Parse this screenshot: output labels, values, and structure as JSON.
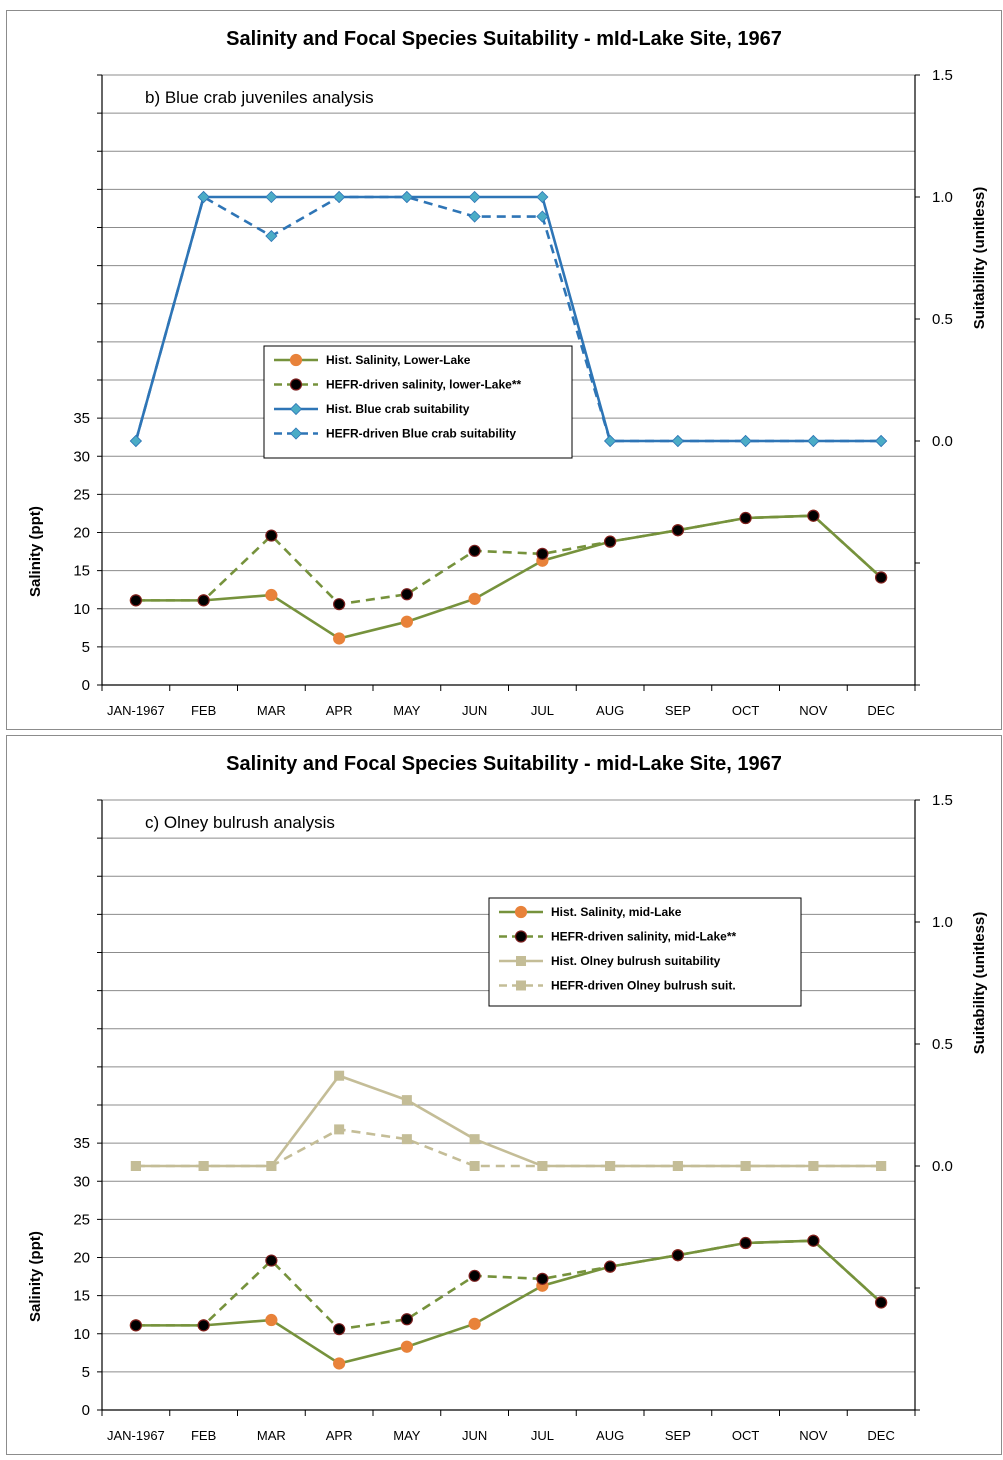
{
  "chart_data": [
    {
      "type": "line",
      "title": "Salinity and Focal Species Suitability - mId-Lake Site, 1967",
      "annotation": "b) Blue crab juveniles analysis",
      "ylabel": "Salinity (ppt)",
      "y2label": "Suitability (unitless)",
      "categories": [
        "JAN-1967",
        "FEB",
        "MAR",
        "APR",
        "MAY",
        "JUN",
        "JUL",
        "AUG",
        "SEP",
        "OCT",
        "NOV",
        "DEC"
      ],
      "ylim": [
        0,
        80
      ],
      "y_ticks": [
        "0",
        "5",
        "10",
        "15",
        "20",
        "25",
        "30",
        "35"
      ],
      "y2lim": [
        -1.0,
        1.5
      ],
      "y2_ticks": [
        "0.0",
        "0.5",
        "1.0",
        "1.5"
      ],
      "grid": true,
      "legend_position": "center",
      "series": [
        {
          "name": "Hist. Salinity, Lower-Lake",
          "axis": "left",
          "color": "#76923c",
          "marker": "circle",
          "marker_color": "#e8823a",
          "dashed": false,
          "values": [
            11.1,
            11.1,
            11.8,
            6.1,
            8.3,
            11.3,
            16.3,
            18.8,
            20.3,
            21.9,
            22.2,
            14.1
          ]
        },
        {
          "name": "HEFR-driven salinity, lower-Lake**",
          "axis": "left",
          "color": "#76923c",
          "marker": "circle",
          "marker_color": "#000000",
          "dashed": true,
          "values": [
            11.1,
            11.1,
            19.6,
            10.6,
            11.9,
            17.6,
            17.2,
            18.8,
            20.3,
            21.9,
            22.2,
            14.1
          ]
        },
        {
          "name": "Hist. Blue crab suitability",
          "axis": "right",
          "color": "#2e75b6",
          "marker": "diamond",
          "marker_color": "#4bacc6",
          "dashed": false,
          "values": [
            0,
            1,
            1,
            1,
            1,
            1,
            1,
            0,
            0,
            0,
            0,
            0
          ]
        },
        {
          "name": "HEFR-driven Blue crab suitability",
          "axis": "right",
          "color": "#2e75b6",
          "marker": "diamond",
          "marker_color": "#4bacc6",
          "dashed": true,
          "values": [
            0,
            1,
            0.84,
            1,
            1,
            0.92,
            0.92,
            0,
            0,
            0,
            0,
            0
          ]
        }
      ]
    },
    {
      "type": "line",
      "title": "Salinity and Focal Species Suitability - mid-Lake Site, 1967",
      "annotation": "c) Olney bulrush analysis",
      "ylabel": "Salinity (ppt)",
      "y2label": "Suitability (unitless)",
      "categories": [
        "JAN-1967",
        "FEB",
        "MAR",
        "APR",
        "MAY",
        "JUN",
        "JUL",
        "AUG",
        "SEP",
        "OCT",
        "NOV",
        "DEC"
      ],
      "ylim": [
        0,
        80
      ],
      "y_ticks": [
        "0",
        "5",
        "10",
        "15",
        "20",
        "25",
        "30",
        "35"
      ],
      "y2lim": [
        -1.0,
        1.5
      ],
      "y2_ticks": [
        "0.0",
        "0.5",
        "1.0",
        "1.5"
      ],
      "grid": true,
      "legend_position": "top-right",
      "series": [
        {
          "name": "Hist. Salinity, mid-Lake",
          "axis": "left",
          "color": "#76923c",
          "marker": "circle",
          "marker_color": "#e8823a",
          "dashed": false,
          "values": [
            11.1,
            11.1,
            11.8,
            6.1,
            8.3,
            11.3,
            16.3,
            18.8,
            20.3,
            21.9,
            22.2,
            14.1
          ]
        },
        {
          "name": "HEFR-driven salinity, mid-Lake**",
          "axis": "left",
          "color": "#76923c",
          "marker": "circle",
          "marker_color": "#000000",
          "dashed": true,
          "values": [
            11.1,
            11.1,
            19.6,
            10.6,
            11.9,
            17.6,
            17.2,
            18.8,
            20.3,
            21.9,
            22.2,
            14.1
          ]
        },
        {
          "name": "Hist. Olney bulrush suitability",
          "axis": "right",
          "color": "#c4bd97",
          "marker": "square",
          "marker_color": "#c4bd97",
          "dashed": false,
          "values": [
            0,
            0,
            0,
            0.37,
            0.27,
            0.11,
            0,
            0,
            0,
            0,
            0,
            0
          ]
        },
        {
          "name": "HEFR-driven Olney bulrush suit.",
          "axis": "right",
          "color": "#c4bd97",
          "marker": "square",
          "marker_color": "#c4bd97",
          "dashed": true,
          "values": [
            0,
            0,
            0,
            0.15,
            0.11,
            0,
            0,
            0,
            0,
            0,
            0,
            0
          ]
        }
      ]
    }
  ]
}
